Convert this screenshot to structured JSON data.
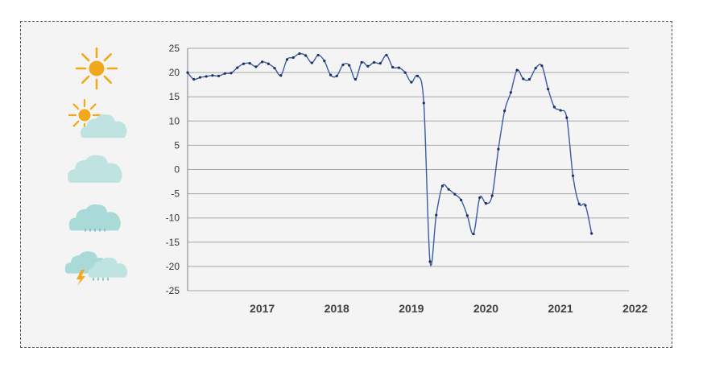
{
  "chart_data": {
    "type": "line",
    "title": "",
    "xlabel": "",
    "ylabel": "",
    "ylim": [
      -25,
      25
    ],
    "yticks": [
      -25,
      -20,
      -15,
      -10,
      -5,
      0,
      5,
      10,
      15,
      20,
      25
    ],
    "xticks": [
      "2017",
      "2018",
      "2019",
      "2020",
      "2021",
      "2022"
    ],
    "xlim": [
      "2016-07",
      "2022-06"
    ],
    "grid": true,
    "series": [
      {
        "color": "#3b5ba5",
        "marker_color": "#1f2f5e",
        "points": [
          [
            "2016-07",
            20.0
          ],
          [
            "2016-08",
            18.6
          ],
          [
            "2016-09",
            19.0
          ],
          [
            "2016-10",
            19.2
          ],
          [
            "2016-11",
            19.4
          ],
          [
            "2016-12",
            19.3
          ],
          [
            "2017-01",
            19.8
          ],
          [
            "2017-02",
            19.9
          ],
          [
            "2017-03",
            21.0
          ],
          [
            "2017-04",
            21.8
          ],
          [
            "2017-05",
            21.9
          ],
          [
            "2017-06",
            21.2
          ],
          [
            "2017-07",
            22.2
          ],
          [
            "2017-08",
            21.8
          ],
          [
            "2017-09",
            20.9
          ],
          [
            "2017-10",
            19.4
          ],
          [
            "2017-11",
            22.7
          ],
          [
            "2017-12",
            23.1
          ],
          [
            "2018-01",
            23.9
          ],
          [
            "2018-02",
            23.5
          ],
          [
            "2018-03",
            22.0
          ],
          [
            "2018-04",
            23.6
          ],
          [
            "2018-05",
            22.4
          ],
          [
            "2018-06",
            19.5
          ],
          [
            "2018-07",
            19.3
          ],
          [
            "2018-08",
            21.6
          ],
          [
            "2018-09",
            21.5
          ],
          [
            "2018-10",
            18.6
          ],
          [
            "2018-11",
            22.1
          ],
          [
            "2018-12",
            21.3
          ],
          [
            "2019-01",
            22.1
          ],
          [
            "2019-02",
            21.9
          ],
          [
            "2019-03",
            23.6
          ],
          [
            "2019-04",
            21.1
          ],
          [
            "2019-05",
            21.0
          ],
          [
            "2019-06",
            20.0
          ],
          [
            "2019-07",
            18.0
          ],
          [
            "2019-08",
            19.3
          ],
          [
            "2019-09",
            13.7
          ],
          [
            "2019-10",
            -19.0
          ],
          [
            "2019-11",
            -9.4
          ],
          [
            "2019-12",
            -3.4
          ],
          [
            "2020-01",
            -4.1
          ],
          [
            "2020-02",
            -5.1
          ],
          [
            "2020-03",
            -6.3
          ],
          [
            "2020-04",
            -9.5
          ],
          [
            "2020-05",
            -13.3
          ],
          [
            "2020-06",
            -5.8
          ],
          [
            "2020-07",
            -7.0
          ],
          [
            "2020-08",
            -5.4
          ],
          [
            "2020-09",
            4.2
          ],
          [
            "2020-10",
            12.1
          ],
          [
            "2020-11",
            15.9
          ],
          [
            "2020-12",
            20.5
          ],
          [
            "2021-01",
            18.7
          ],
          [
            "2021-02",
            18.6
          ],
          [
            "2021-03",
            20.9
          ],
          [
            "2021-04",
            21.4
          ],
          [
            "2021-05",
            16.6
          ],
          [
            "2021-06",
            12.9
          ],
          [
            "2021-07",
            12.2
          ],
          [
            "2021-08",
            10.7
          ],
          [
            "2021-09",
            -1.3
          ],
          [
            "2021-10",
            -7.1
          ],
          [
            "2021-11",
            -7.4
          ],
          [
            "2021-12",
            -13.2
          ]
        ]
      }
    ]
  },
  "weather_legend": [
    {
      "icon": "sun-icon"
    },
    {
      "icon": "sun-behind-cloud-icon"
    },
    {
      "icon": "cloud-icon"
    },
    {
      "icon": "rain-cloud-icon"
    },
    {
      "icon": "thunderstorm-icon"
    }
  ],
  "colors": {
    "sun": "#f2a81d",
    "cloud_light": "#bfe3e1",
    "cloud_mid": "#a9dad8",
    "rain": "#7fc0c4",
    "bolt": "#f2a81d",
    "grid": "#a6a6a6",
    "axis": "#404040"
  }
}
